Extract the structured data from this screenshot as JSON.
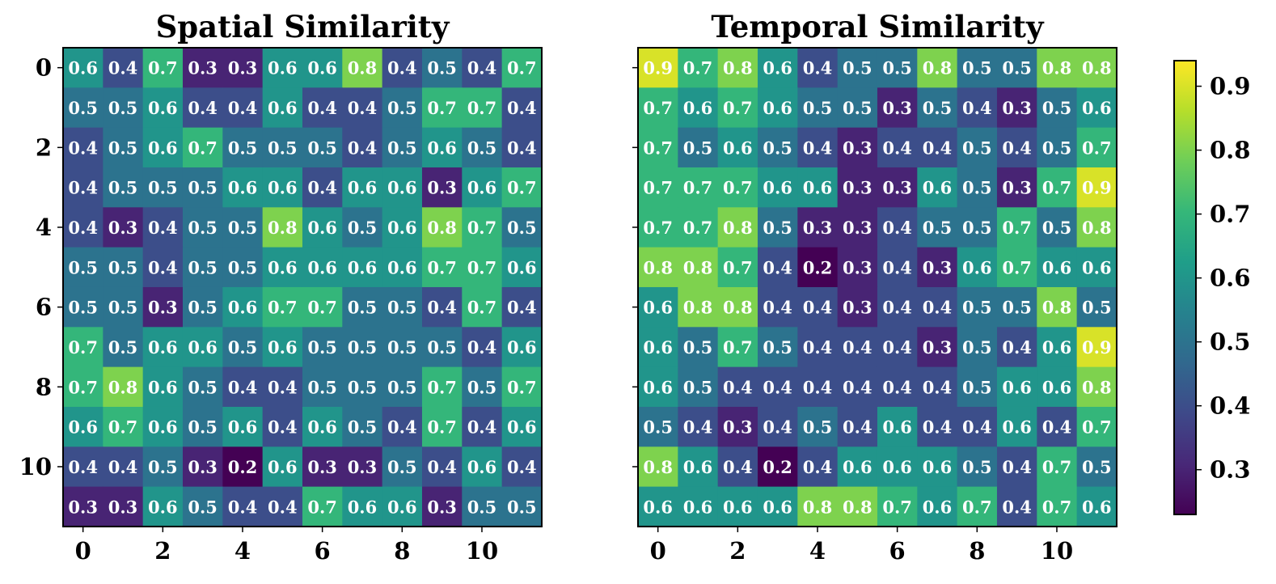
{
  "chart_data": [
    {
      "type": "heatmap",
      "title": "Spatial Similarity",
      "x_ticks": [
        "0",
        "2",
        "4",
        "6",
        "8",
        "10"
      ],
      "y_ticks": [
        "0",
        "2",
        "4",
        "6",
        "8",
        "10"
      ],
      "values": [
        [
          0.6,
          0.4,
          0.7,
          0.3,
          0.3,
          0.6,
          0.6,
          0.8,
          0.4,
          0.5,
          0.4,
          0.7
        ],
        [
          0.5,
          0.5,
          0.6,
          0.4,
          0.4,
          0.6,
          0.4,
          0.4,
          0.5,
          0.7,
          0.7,
          0.4
        ],
        [
          0.4,
          0.5,
          0.6,
          0.7,
          0.5,
          0.5,
          0.5,
          0.4,
          0.5,
          0.6,
          0.5,
          0.4
        ],
        [
          0.4,
          0.5,
          0.5,
          0.5,
          0.6,
          0.6,
          0.4,
          0.6,
          0.6,
          0.3,
          0.6,
          0.7
        ],
        [
          0.4,
          0.3,
          0.4,
          0.5,
          0.5,
          0.8,
          0.6,
          0.5,
          0.6,
          0.8,
          0.7,
          0.5
        ],
        [
          0.5,
          0.5,
          0.4,
          0.5,
          0.5,
          0.6,
          0.6,
          0.6,
          0.6,
          0.7,
          0.7,
          0.6
        ],
        [
          0.5,
          0.5,
          0.3,
          0.5,
          0.6,
          0.7,
          0.7,
          0.5,
          0.5,
          0.4,
          0.7,
          0.4
        ],
        [
          0.7,
          0.5,
          0.6,
          0.6,
          0.5,
          0.6,
          0.5,
          0.5,
          0.5,
          0.5,
          0.4,
          0.6
        ],
        [
          0.7,
          0.8,
          0.6,
          0.5,
          0.4,
          0.4,
          0.5,
          0.5,
          0.5,
          0.7,
          0.5,
          0.7
        ],
        [
          0.6,
          0.7,
          0.6,
          0.5,
          0.6,
          0.4,
          0.6,
          0.5,
          0.4,
          0.7,
          0.4,
          0.6
        ],
        [
          0.4,
          0.4,
          0.5,
          0.3,
          0.2,
          0.6,
          0.3,
          0.3,
          0.5,
          0.4,
          0.6,
          0.4
        ],
        [
          0.3,
          0.3,
          0.6,
          0.5,
          0.4,
          0.4,
          0.7,
          0.6,
          0.6,
          0.3,
          0.5,
          0.5
        ]
      ]
    },
    {
      "type": "heatmap",
      "title": "Temporal Similarity",
      "x_ticks": [
        "0",
        "2",
        "4",
        "6",
        "8",
        "10"
      ],
      "y_ticks": [],
      "values": [
        [
          0.9,
          0.7,
          0.8,
          0.6,
          0.4,
          0.5,
          0.5,
          0.8,
          0.5,
          0.5,
          0.8,
          0.8
        ],
        [
          0.7,
          0.6,
          0.7,
          0.6,
          0.5,
          0.5,
          0.3,
          0.5,
          0.4,
          0.3,
          0.5,
          0.6
        ],
        [
          0.7,
          0.5,
          0.6,
          0.5,
          0.4,
          0.3,
          0.4,
          0.4,
          0.5,
          0.4,
          0.5,
          0.7
        ],
        [
          0.7,
          0.7,
          0.7,
          0.6,
          0.6,
          0.3,
          0.3,
          0.6,
          0.5,
          0.3,
          0.7,
          0.9
        ],
        [
          0.7,
          0.7,
          0.8,
          0.5,
          0.3,
          0.3,
          0.4,
          0.5,
          0.5,
          0.7,
          0.5,
          0.8
        ],
        [
          0.8,
          0.8,
          0.7,
          0.4,
          0.2,
          0.3,
          0.4,
          0.3,
          0.6,
          0.7,
          0.6,
          0.6
        ],
        [
          0.6,
          0.8,
          0.8,
          0.4,
          0.4,
          0.3,
          0.4,
          0.4,
          0.5,
          0.5,
          0.8,
          0.5
        ],
        [
          0.6,
          0.5,
          0.7,
          0.5,
          0.4,
          0.4,
          0.4,
          0.3,
          0.5,
          0.4,
          0.6,
          0.9
        ],
        [
          0.6,
          0.5,
          0.4,
          0.4,
          0.4,
          0.4,
          0.4,
          0.4,
          0.5,
          0.6,
          0.6,
          0.8
        ],
        [
          0.5,
          0.4,
          0.3,
          0.4,
          0.5,
          0.4,
          0.6,
          0.4,
          0.4,
          0.6,
          0.4,
          0.7
        ],
        [
          0.8,
          0.6,
          0.4,
          0.2,
          0.4,
          0.6,
          0.6,
          0.6,
          0.5,
          0.4,
          0.7,
          0.5
        ],
        [
          0.6,
          0.6,
          0.6,
          0.6,
          0.8,
          0.8,
          0.7,
          0.6,
          0.7,
          0.4,
          0.7,
          0.6
        ]
      ]
    }
  ],
  "colorbar": {
    "colormap": "viridis",
    "range": [
      0.23,
      0.94
    ],
    "tick_labels": [
      "0.3",
      "0.4",
      "0.5",
      "0.6",
      "0.7",
      "0.8",
      "0.9"
    ]
  },
  "colors": {
    "viridis": [
      "#440154",
      "#482878",
      "#3e4989",
      "#31688e",
      "#26828e",
      "#1f9e89",
      "#35b779",
      "#6ece58",
      "#b5de2b",
      "#fde725"
    ],
    "cell_text": "#ffffff",
    "axis": "#000000"
  }
}
